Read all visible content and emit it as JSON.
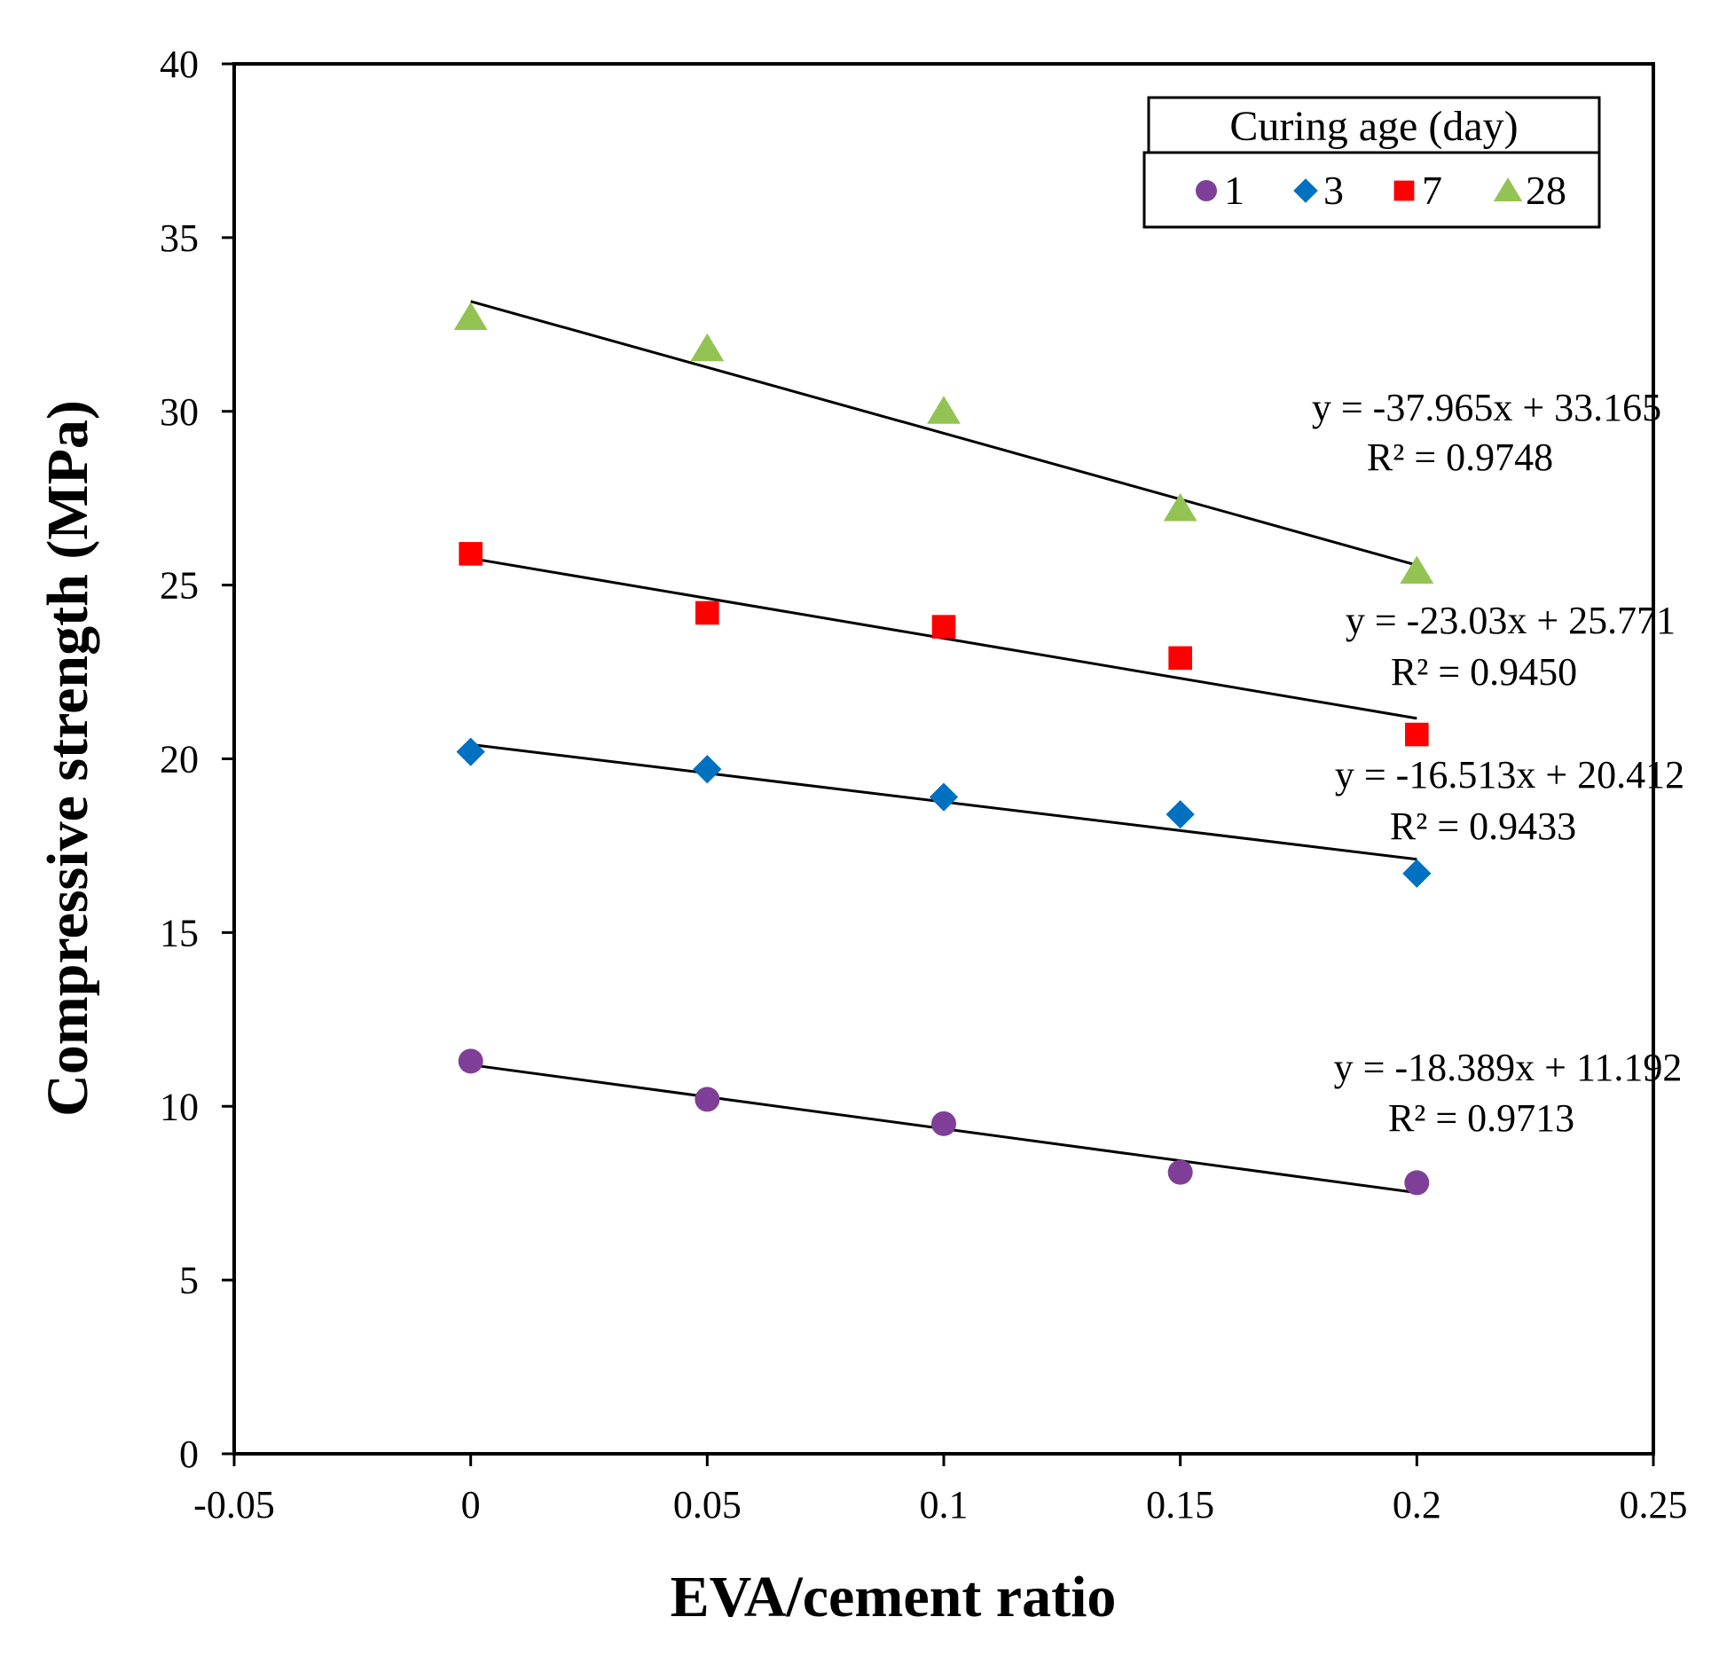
{
  "chart_data": {
    "type": "scatter",
    "title": "",
    "xlabel": "EVA/cement ratio",
    "ylabel": "Compressive strength (MPa)",
    "xlim": [
      -0.05,
      0.25
    ],
    "ylim": [
      0,
      40
    ],
    "xticks": [
      -0.05,
      0,
      0.05,
      0.1,
      0.15,
      0.2,
      0.25
    ],
    "xtick_labels": [
      "-0.05",
      "0",
      "0.05",
      "0.1",
      "0.15",
      "0.2",
      "0.25"
    ],
    "yticks": [
      0,
      5,
      10,
      15,
      20,
      25,
      30,
      35,
      40
    ],
    "ytick_labels": [
      "0",
      "5",
      "10",
      "15",
      "20",
      "25",
      "30",
      "35",
      "40"
    ],
    "grid": false,
    "legend": {
      "title": "Curing age (day)",
      "placement": "top-right"
    },
    "x": [
      0,
      0.05,
      0.1,
      0.15,
      0.2
    ],
    "series": [
      {
        "name": "1",
        "marker": "circle",
        "color": "#7f3f98",
        "values": [
          11.3,
          10.2,
          9.5,
          8.1,
          7.8
        ],
        "trend": {
          "slope": -18.389,
          "intercept": 11.192
        },
        "equation": "y = -18.389x + 11.192",
        "r2": "R² = 0.9713"
      },
      {
        "name": "3",
        "marker": "diamond",
        "color": "#0070c0",
        "values": [
          20.2,
          19.7,
          18.9,
          18.4,
          16.7
        ],
        "trend": {
          "slope": -16.513,
          "intercept": 20.412
        },
        "equation": "y = -16.513x + 20.412",
        "r2": "R² = 0.9433"
      },
      {
        "name": "7",
        "marker": "square",
        "color": "#ff0000",
        "values": [
          25.9,
          24.2,
          23.8,
          22.9,
          20.7
        ],
        "trend": {
          "slope": -23.03,
          "intercept": 25.771
        },
        "equation": "y = -23.03x + 25.771",
        "r2": "R² = 0.9450"
      },
      {
        "name": "28",
        "marker": "triangle",
        "color": "#92c353",
        "values": [
          32.7,
          31.8,
          30.0,
          27.2,
          25.4
        ],
        "trend": {
          "slope": -37.965,
          "intercept": 33.165
        },
        "equation": "y = -37.965x + 33.165",
        "r2": "R² = 0.9748"
      }
    ]
  }
}
